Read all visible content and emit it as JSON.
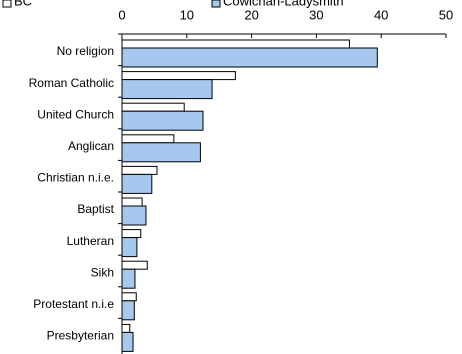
{
  "chart_data": {
    "type": "bar",
    "orientation": "horizontal",
    "categories": [
      "No religion",
      "Roman Catholic",
      "United Church",
      "Anglican",
      "Christian n.i.e.",
      "Baptist",
      "Lutheran",
      "Sikh",
      "Protestant n.i.e",
      "Presbyterian"
    ],
    "series": [
      {
        "name": "BC",
        "color": "#ffffff",
        "values": [
          35.1,
          17.5,
          9.6,
          8.0,
          5.4,
          3.1,
          2.9,
          3.9,
          2.2,
          1.2
        ]
      },
      {
        "name": "Cowichan-Ladysmith",
        "color": "#a6c8ee",
        "values": [
          39.4,
          13.9,
          12.5,
          12.1,
          4.6,
          3.7,
          2.3,
          2.0,
          1.9,
          1.7
        ]
      }
    ],
    "xlim": [
      0,
      50
    ],
    "xticks": [
      0,
      10,
      20,
      30,
      40,
      50
    ]
  }
}
